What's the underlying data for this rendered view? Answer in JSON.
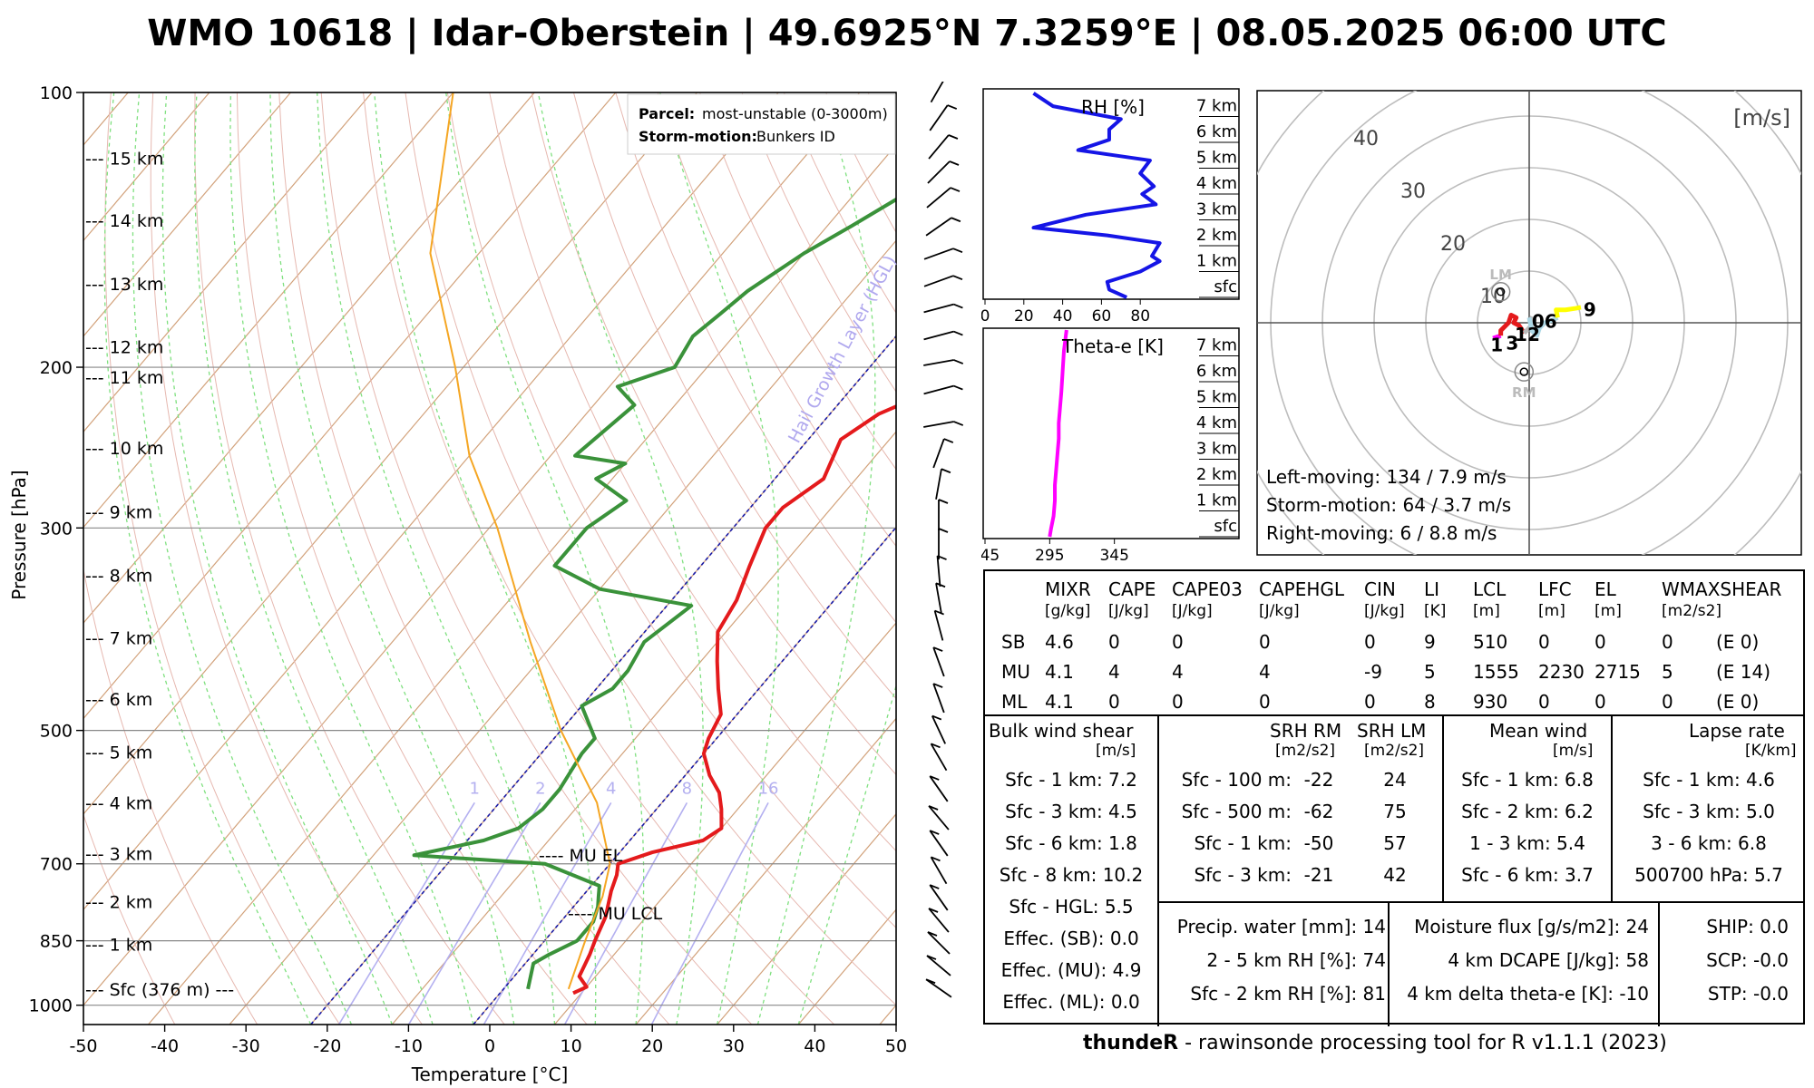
{
  "title": "WMO 10618 | Idar-Oberstein | 49.6925°N 7.3259°E | 08.05.2025 06:00 UTC",
  "footer": {
    "bold": "thundeR",
    "rest": " - rawinsonde processing tool for R v1.1.1 (2023)"
  },
  "skewt": {
    "xlabel": "Temperature [°C]",
    "ylabel": "Pressure [hPa]",
    "xticks": [
      -50,
      -40,
      -30,
      -20,
      -10,
      0,
      10,
      20,
      30,
      40,
      50
    ],
    "pticks": [
      100,
      200,
      300,
      500,
      700,
      850,
      1000
    ],
    "heights": [
      {
        "label": "--- 15 km",
        "p": 118
      },
      {
        "label": "--- 14 km",
        "p": 138
      },
      {
        "label": "--- 13 km",
        "p": 162
      },
      {
        "label": "--- 12 km",
        "p": 190
      },
      {
        "label": "--- 11 km",
        "p": 205
      },
      {
        "label": "--- 10 km",
        "p": 245
      },
      {
        "label": "--- 9 km",
        "p": 288
      },
      {
        "label": "--- 8 km",
        "p": 338
      },
      {
        "label": "--- 7 km",
        "p": 396
      },
      {
        "label": "--- 6 km",
        "p": 462
      },
      {
        "label": "--- 5 km",
        "p": 528
      },
      {
        "label": "--- 4 km",
        "p": 600
      },
      {
        "label": "--- 3 km",
        "p": 682
      },
      {
        "label": "--- 2 km",
        "p": 770
      },
      {
        "label": "--- 1 km",
        "p": 858
      },
      {
        "label": "--- Sfc (376 m) ---",
        "p": 960
      }
    ],
    "mixing_ratio_labels": [
      "1",
      "2",
      "4",
      "8",
      "16"
    ],
    "hgl_label": "Hail Growth Layer (HGL)",
    "legend": {
      "parcel_label": "Parcel:",
      "parcel_value": "most-unstable (0-3000m)",
      "storm_label": "Storm-motion:",
      "storm_value": "Bunkers ID"
    },
    "annotations": {
      "mu_el": "---- MU EL",
      "mu_lcl": "---- MU LCL"
    }
  },
  "chart_data": {
    "type": "line",
    "title": "WMO 10618 | Idar-Oberstein | 49.6925°N 7.3259°E | 08.05.2025 06:00 UTC",
    "xlabel": "Temperature [°C]",
    "ylabel": "Pressure [hPa]",
    "xlim": [
      -50,
      50
    ],
    "ylim": [
      1050,
      100
    ],
    "y_scale": "log",
    "series": [
      {
        "name": "Temperature",
        "color": "#e41a1c",
        "points": [
          [
            970,
            9
          ],
          [
            955,
            10
          ],
          [
            930,
            8
          ],
          [
            880,
            7
          ],
          [
            850,
            6.2
          ],
          [
            800,
            5
          ],
          [
            750,
            3
          ],
          [
            720,
            2
          ],
          [
            700,
            1
          ],
          [
            680,
            4
          ],
          [
            660,
            9
          ],
          [
            640,
            10
          ],
          [
            610,
            8
          ],
          [
            585,
            6
          ],
          [
            560,
            3
          ],
          [
            530,
            0
          ],
          [
            510,
            -1
          ],
          [
            480,
            -2
          ],
          [
            450,
            -5
          ],
          [
            420,
            -8
          ],
          [
            390,
            -11
          ],
          [
            360,
            -12
          ],
          [
            330,
            -14
          ],
          [
            300,
            -16
          ],
          [
            285,
            -16
          ],
          [
            265,
            -14
          ],
          [
            240,
            -16
          ],
          [
            225,
            -14
          ],
          [
            210,
            -9
          ],
          [
            198,
            -8
          ],
          [
            185,
            -10
          ],
          [
            170,
            -12
          ],
          [
            160,
            -14
          ],
          [
            148,
            -14
          ],
          [
            140,
            -15
          ],
          [
            133,
            -15
          ],
          [
            125,
            -15
          ],
          [
            118,
            -15
          ],
          [
            110,
            -18
          ],
          [
            104,
            -21
          ]
        ]
      },
      {
        "name": "Dewpoint",
        "color": "#3a923a",
        "points": [
          [
            960,
            3
          ],
          [
            900,
            1
          ],
          [
            880,
            2
          ],
          [
            850,
            4
          ],
          [
            810,
            4
          ],
          [
            780,
            3
          ],
          [
            760,
            2
          ],
          [
            740,
            1
          ],
          [
            700,
            -8
          ],
          [
            685,
            -25
          ],
          [
            660,
            -18
          ],
          [
            640,
            -15
          ],
          [
            610,
            -14
          ],
          [
            580,
            -14
          ],
          [
            530,
            -15
          ],
          [
            510,
            -15
          ],
          [
            470,
            -20
          ],
          [
            450,
            -18
          ],
          [
            430,
            -18
          ],
          [
            400,
            -19
          ],
          [
            365,
            -17
          ],
          [
            350,
            -30
          ],
          [
            330,
            -38
          ],
          [
            300,
            -38
          ],
          [
            280,
            -36
          ],
          [
            265,
            -42
          ],
          [
            255,
            -40
          ],
          [
            250,
            -47
          ],
          [
            220,
            -45
          ],
          [
            210,
            -49
          ],
          [
            200,
            -44
          ],
          [
            185,
            -45
          ],
          [
            175,
            -44
          ],
          [
            165,
            -43
          ],
          [
            150,
            -40
          ],
          [
            140,
            -37
          ],
          [
            130,
            -34
          ],
          [
            118,
            -33
          ],
          [
            108,
            -31
          ],
          [
            100,
            -30
          ]
        ]
      },
      {
        "name": "Parcel",
        "color": "#f5a623",
        "points": [
          [
            960,
            8
          ],
          [
            850,
            5
          ],
          [
            760,
            2.5
          ],
          [
            700,
            0
          ],
          [
            600,
            -8
          ],
          [
            500,
            -20
          ],
          [
            400,
            -33
          ],
          [
            300,
            -49
          ],
          [
            250,
            -60
          ],
          [
            200,
            -71
          ],
          [
            150,
            -86
          ],
          [
            100,
            -100
          ]
        ]
      }
    ]
  },
  "rh_panel": {
    "label": "RH [%]",
    "xticks": [
      0,
      20,
      40,
      60,
      80
    ],
    "heights": [
      "sfc",
      "1 km",
      "2 km",
      "3 km",
      "4 km",
      "5 km",
      "6 km",
      "7 km"
    ],
    "values": [
      [
        0.0,
        73
      ],
      [
        0.3,
        64
      ],
      [
        0.6,
        63
      ],
      [
        1.0,
        80
      ],
      [
        1.4,
        90
      ],
      [
        1.6,
        86
      ],
      [
        2.1,
        90
      ],
      [
        2.4,
        63
      ],
      [
        2.7,
        25
      ],
      [
        3.2,
        52
      ],
      [
        3.6,
        88
      ],
      [
        4.0,
        81
      ],
      [
        4.3,
        87
      ],
      [
        4.8,
        80
      ],
      [
        5.3,
        85
      ],
      [
        5.7,
        48
      ],
      [
        6.1,
        64
      ],
      [
        6.5,
        64
      ],
      [
        6.9,
        70
      ],
      [
        7.4,
        35
      ],
      [
        7.9,
        25
      ]
    ]
  },
  "thetae_panel": {
    "label": "Theta-e [K]",
    "xticks": [
      245,
      295,
      345
    ],
    "heights": [
      "sfc",
      "1 km",
      "2 km",
      "3 km",
      "4 km",
      "5 km",
      "6 km",
      "7 km"
    ],
    "values": [
      [
        0.0,
        295
      ],
      [
        0.3,
        296
      ],
      [
        0.8,
        298
      ],
      [
        1.4,
        299
      ],
      [
        2.0,
        299
      ],
      [
        2.6,
        300
      ],
      [
        3.2,
        301
      ],
      [
        3.8,
        302
      ],
      [
        4.4,
        302
      ],
      [
        5.0,
        303
      ],
      [
        5.6,
        304
      ],
      [
        6.4,
        305
      ],
      [
        7.2,
        306
      ],
      [
        8.0,
        308
      ]
    ]
  },
  "hodograph": {
    "unit": "[m/s]",
    "ring_labels": [
      "10",
      "20",
      "30",
      "40"
    ],
    "lm_label": "LM",
    "rm_label": "RM",
    "height_labels": [
      "06",
      "9",
      "1",
      "3",
      "12"
    ],
    "summary": [
      "Left-moving: 134 / 7.9 m/s",
      "Storm-motion: 64 / 3.7 m/s",
      "Right-moving: 6 / 8.8 m/s"
    ],
    "segments": [
      {
        "color": "#ff00ff",
        "points": [
          [
            -7,
            -3
          ],
          [
            -5.5,
            -2.5
          ]
        ]
      },
      {
        "color": "#e41a1c",
        "points": [
          [
            -5.5,
            -2.5
          ],
          [
            -5.5,
            -1.5
          ],
          [
            -4,
            0
          ],
          [
            -3.5,
            1.5
          ],
          [
            -2.5,
            1
          ],
          [
            -3,
            0
          ],
          [
            -2,
            -0.5
          ],
          [
            -1.5,
            -1.2
          ],
          [
            -1,
            -2
          ]
        ]
      },
      {
        "color": "#bbbbbb",
        "points": [
          [
            -1,
            -2
          ],
          [
            0,
            -1
          ],
          [
            1,
            0.5
          ],
          [
            0,
            1
          ]
        ]
      },
      {
        "color": "#add8e6",
        "points": [
          [
            0,
            1
          ],
          [
            0.5,
            -1.5
          ],
          [
            1,
            -2
          ],
          [
            1.5,
            -2.5
          ],
          [
            2,
            -1
          ],
          [
            3,
            0
          ],
          [
            4.5,
            0.5
          ],
          [
            5.5,
            1
          ]
        ]
      },
      {
        "color": "#ffff00",
        "points": [
          [
            5.5,
            1
          ],
          [
            5.2,
            2.5
          ],
          [
            7,
            2.5
          ],
          [
            9,
            2.8
          ],
          [
            10,
            3
          ]
        ]
      }
    ]
  },
  "params": {
    "top": {
      "headers": [
        {
          "name": "MIXR",
          "unit": "[g/kg]"
        },
        {
          "name": "CAPE",
          "unit": "[J/kg]"
        },
        {
          "name": "CAPE03",
          "unit": "[J/kg]"
        },
        {
          "name": "CAPEHGL",
          "unit": "[J/kg]"
        },
        {
          "name": "CIN",
          "unit": "[J/kg]"
        },
        {
          "name": "LI",
          "unit": "[K]"
        },
        {
          "name": "LCL",
          "unit": "[m]"
        },
        {
          "name": "LFC",
          "unit": "[m]"
        },
        {
          "name": "EL",
          "unit": "[m]"
        },
        {
          "name": "WMAXSHEAR",
          "unit": "[m2/s2]"
        }
      ],
      "rows": [
        {
          "label": "SB",
          "values": [
            "4.6",
            "0",
            "0",
            "0",
            "0",
            "9",
            "510",
            "0",
            "0",
            "0",
            "(E 0)"
          ]
        },
        {
          "label": "MU",
          "values": [
            "4.1",
            "4",
            "4",
            "4",
            "-9",
            "5",
            "1555",
            "2230",
            "2715",
            "5",
            "(E 14)"
          ]
        },
        {
          "label": "ML",
          "values": [
            "4.1",
            "0",
            "0",
            "0",
            "0",
            "8",
            "930",
            "0",
            "0",
            "0",
            "(E 0)"
          ]
        }
      ]
    },
    "shear": {
      "title": "Bulk wind shear",
      "unit": "[m/s]",
      "rows": [
        "Sfc - 1 km: 7.2",
        "Sfc - 3 km: 4.5",
        "Sfc - 6 km: 1.8",
        "Sfc - 8 km: 10.2",
        "Sfc - HGL: 5.5",
        "Effec. (SB): 0.0",
        "Effec. (MU): 4.9",
        "Effec. (ML): 0.0"
      ]
    },
    "srh": {
      "title_rm": "SRH RM",
      "title_lm": "SRH LM",
      "unit_rm": "[m2/s2]",
      "unit_lm": "[m2/s2]",
      "rows": [
        {
          "label": "Sfc - 100 m:",
          "rm": "-22",
          "lm": "24"
        },
        {
          "label": "Sfc - 500 m:",
          "rm": "-62",
          "lm": "75"
        },
        {
          "label": "Sfc - 1 km:",
          "rm": "-50",
          "lm": "57"
        },
        {
          "label": "Sfc - 3 km:",
          "rm": "-21",
          "lm": "42"
        }
      ]
    },
    "meanwind": {
      "title": "Mean wind",
      "unit": "[m/s]",
      "rows": [
        "Sfc - 1 km: 6.8",
        "Sfc - 2 km: 6.2",
        "1 - 3 km: 5.4",
        "Sfc - 6 km: 3.7"
      ]
    },
    "lapse": {
      "title": "Lapse rate",
      "unit": "[K/km]",
      "rows": [
        "Sfc - 1 km: 4.6",
        "Sfc - 3 km: 5.0",
        "3 - 6 km: 6.8",
        "500700 hPa: 5.7"
      ]
    },
    "moisture": [
      "Precip. water [mm]: 14",
      "2 - 5 km RH [%]: 74",
      "Sfc - 2 km RH [%]: 81"
    ],
    "flux": [
      "Moisture flux [g/s/m2]: 24",
      "4 km DCAPE [J/kg]: 58",
      "4 km delta theta-e [K]: -10"
    ],
    "indices": [
      "SHIP: 0.0",
      "SCP: -0.0",
      "STP: -0.0"
    ]
  }
}
